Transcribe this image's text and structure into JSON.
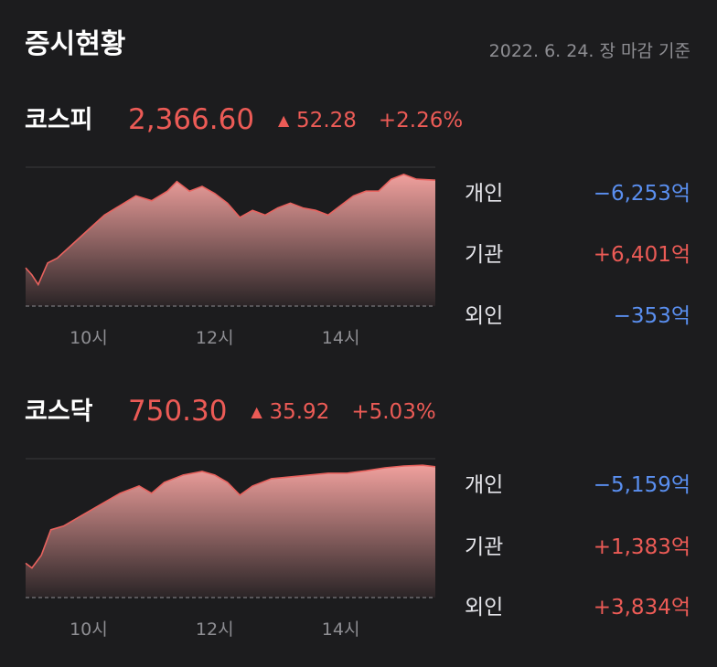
{
  "header": {
    "title": "증시현황",
    "date": "2022. 6. 24. 장 마감 기준"
  },
  "markets": [
    {
      "name": "코스피",
      "price": "2,366.60",
      "change": "52.28",
      "change_pct": "+2.26%",
      "chart": {
        "type": "area",
        "color": "#e8625e",
        "xlim": [
          9,
          15.5
        ],
        "ylim": [
          2314,
          2372
        ],
        "xticks": [
          {
            "value": 10,
            "label": "10시"
          },
          {
            "value": 12,
            "label": "12시"
          },
          {
            "value": 14,
            "label": "14시"
          }
        ],
        "x": [
          9.0,
          9.1,
          9.2,
          9.35,
          9.5,
          9.75,
          10.0,
          10.25,
          10.5,
          10.75,
          11.0,
          11.25,
          11.4,
          11.6,
          11.8,
          12.0,
          12.2,
          12.4,
          12.6,
          12.8,
          13.0,
          13.2,
          13.4,
          13.6,
          13.8,
          14.0,
          14.2,
          14.4,
          14.6,
          14.8,
          15.0,
          15.2,
          15.5
        ],
        "values": [
          2330,
          2327,
          2323,
          2332,
          2334,
          2340,
          2346,
          2352,
          2356,
          2360,
          2358,
          2362,
          2366,
          2362,
          2364,
          2361,
          2357,
          2351,
          2354,
          2352,
          2355,
          2357,
          2355,
          2354,
          2352,
          2356,
          2360,
          2362,
          2362,
          2367,
          2369,
          2367,
          2366.6
        ]
      },
      "investors": [
        {
          "label": "개인",
          "value": "−6,253억"
        },
        {
          "label": "기관",
          "value": "+6,401억"
        },
        {
          "label": "외인",
          "value": "−353억"
        }
      ]
    },
    {
      "name": "코스닥",
      "price": "750.30",
      "change": "35.92",
      "change_pct": "+5.03%",
      "chart": {
        "type": "area",
        "color": "#e8625e",
        "xlim": [
          9,
          15.5
        ],
        "ylim": [
          714.38,
          752.5
        ],
        "xticks": [
          {
            "value": 10,
            "label": "10시"
          },
          {
            "value": 12,
            "label": "12시"
          },
          {
            "value": 14,
            "label": "14시"
          }
        ],
        "x": [
          9.0,
          9.1,
          9.25,
          9.4,
          9.6,
          9.9,
          10.2,
          10.5,
          10.8,
          11.0,
          11.2,
          11.5,
          11.8,
          12.0,
          12.2,
          12.4,
          12.6,
          12.9,
          13.2,
          13.5,
          13.8,
          14.1,
          14.4,
          14.7,
          15.0,
          15.3,
          15.5
        ],
        "values": [
          723.8,
          722.5,
          726,
          733,
          734,
          737,
          740,
          743,
          745,
          743,
          746,
          748,
          749,
          748,
          746,
          742.5,
          745,
          747,
          747.5,
          748,
          748.5,
          748.5,
          749.2,
          750,
          750.5,
          750.7,
          750.3
        ]
      },
      "investors": [
        {
          "label": "개인",
          "value": "−5,159억"
        },
        {
          "label": "기관",
          "value": "+1,383억"
        },
        {
          "label": "외인",
          "value": "+3,834억"
        }
      ]
    }
  ]
}
